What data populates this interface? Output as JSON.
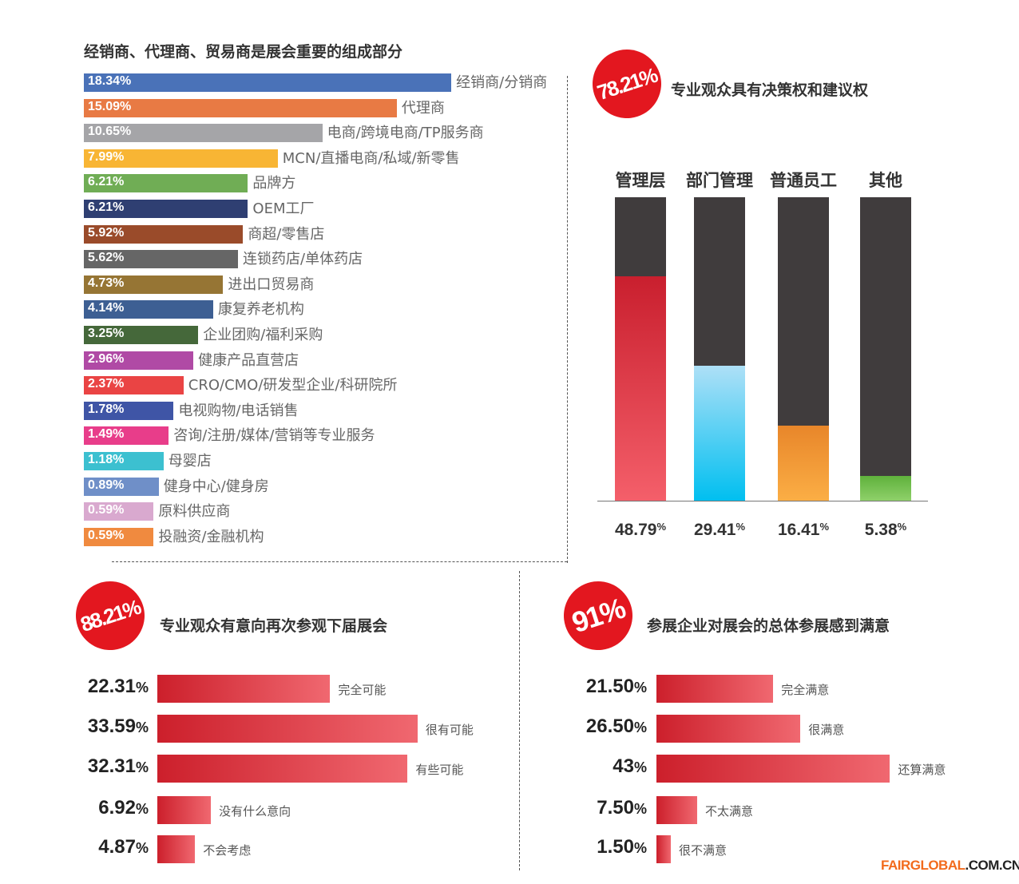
{
  "chart_data": [
    {
      "type": "bar",
      "orientation": "horizontal",
      "title": "经销商、代理商、贸易商是展会重要的组成部分",
      "categories": [
        "经销商/分销商",
        "代理商",
        "电商/跨境电商/TP服务商",
        "MCN/直播电商/私域/新零售",
        "品牌方",
        "OEM工厂",
        "商超/零售店",
        "连锁药店/单体药店",
        "进出口贸易商",
        "康复养老机构",
        "企业团购/福利采购",
        "健康产品直营店",
        "CRO/CMO/研发型企业/科研院所",
        "电视购物/电话销售",
        "咨询/注册/媒体/营销等专业服务",
        "母婴店",
        "健身中心/健身房",
        "原料供应商",
        "投融资/金融机构"
      ],
      "values": [
        18.34,
        15.09,
        10.65,
        7.99,
        6.21,
        6.21,
        5.92,
        5.62,
        4.73,
        4.14,
        3.25,
        2.96,
        2.37,
        1.78,
        1.49,
        1.18,
        0.89,
        0.59,
        0.59
      ],
      "labels": [
        "18.34%",
        "15.09%",
        "10.65%",
        "7.99%",
        "6.21%",
        "6.21%",
        "5.92%",
        "5.62%",
        "4.73%",
        "4.14%",
        "3.25%",
        "2.96%",
        "2.37%",
        "1.78%",
        "1.49%",
        "1.18%",
        "0.89%",
        "0.59%",
        "0.59%"
      ],
      "colors": [
        "#4a72b8",
        "#e87a44",
        "#a5a5a8",
        "#f8b534",
        "#70ad55",
        "#2f3f72",
        "#9a4b2a",
        "#666666",
        "#967534",
        "#3d5f93",
        "#45683a",
        "#b04aa5",
        "#ea4444",
        "#3f55a6",
        "#e83d8a",
        "#3cc0d0",
        "#6f8fc8",
        "#d9a9cf",
        "#f08a3f"
      ]
    },
    {
      "type": "bar",
      "orientation": "vertical",
      "stacked": true,
      "badge": "78.21%",
      "title": "专业观众具有决策权和建议权",
      "categories": [
        "管理层",
        "部门管理",
        "普通员工",
        "其他"
      ],
      "values": [
        48.79,
        29.41,
        16.41,
        5.38
      ],
      "value_labels": [
        "48.79",
        "29.41",
        "16.41",
        "5.38"
      ],
      "unit": "%",
      "colors": [
        [
          "#c91f2e",
          "#f45f6a"
        ],
        [
          "#aee0f7",
          "#00bff0"
        ],
        [
          "#e8862a",
          "#fbae45"
        ],
        [
          "#5fb13c",
          "#8fd06a"
        ]
      ]
    },
    {
      "type": "bar",
      "orientation": "horizontal",
      "badge": "88.21%",
      "title": "专业观众有意向再次参观下届展会",
      "categories": [
        "完全可能",
        "很有可能",
        "有些可能",
        "没有什么意向",
        "不会考虑"
      ],
      "values": [
        22.31,
        33.59,
        32.31,
        6.92,
        4.87
      ],
      "value_labels": [
        "22.31",
        "33.59",
        "32.31",
        "6.92",
        "4.87"
      ],
      "unit": "%"
    },
    {
      "type": "bar",
      "orientation": "horizontal",
      "badge": "91%",
      "title": "参展企业对展会的总体参展感到满意",
      "categories": [
        "完全满意",
        "很满意",
        "还算满意",
        "不太满意",
        "很不满意"
      ],
      "values": [
        21.5,
        26.5,
        43,
        7.5,
        1.5
      ],
      "value_labels": [
        "21.50",
        "26.50",
        "43",
        "7.50",
        "1.50"
      ],
      "unit": "%"
    }
  ],
  "watermark": {
    "part1": "FAIRGLOBAL",
    "part2": ".COM.CN"
  }
}
